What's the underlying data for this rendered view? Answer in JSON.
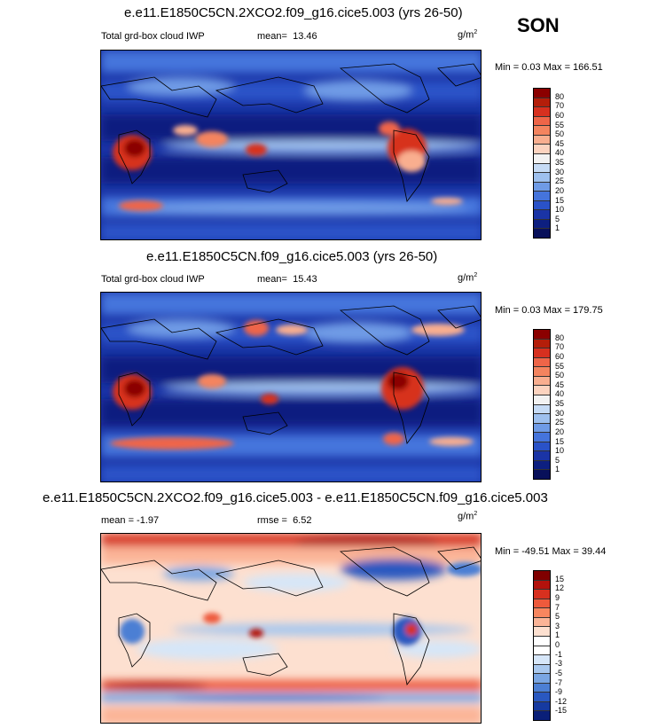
{
  "season": "SON",
  "panels": [
    {
      "title": "e.e11.E1850C5CN.2XCO2.f09_g16.cice5.003 (yrs 26-50)",
      "left_label": "Total grd-box cloud IWP",
      "stat_label": "mean=",
      "stat_value": "13.46",
      "unit": "g/m",
      "unit_exp": "2",
      "minmax": "Min =  0.03 Max = 166.51",
      "levels": [
        "80",
        "70",
        "60",
        "55",
        "50",
        "45",
        "40",
        "35",
        "30",
        "25",
        "20",
        "15",
        "10",
        "5",
        "1"
      ]
    },
    {
      "title": "e.e11.E1850C5CN.f09_g16.cice5.003 (yrs 26-50)",
      "left_label": "Total grd-box cloud IWP",
      "stat_label": "mean=",
      "stat_value": "15.43",
      "unit": "g/m",
      "unit_exp": "2",
      "minmax": "Min =  0.03 Max = 179.75",
      "levels": [
        "80",
        "70",
        "60",
        "55",
        "50",
        "45",
        "40",
        "35",
        "30",
        "25",
        "20",
        "15",
        "10",
        "5",
        "1"
      ]
    },
    {
      "title": "e.e11.E1850C5CN.2XCO2.f09_g16.cice5.003 - e.e11.E1850C5CN.f09_g16.cice5.003",
      "left_label": "mean =  -1.97",
      "stat_label": "rmse =",
      "stat_value": "6.52",
      "unit": "g/m",
      "unit_exp": "2",
      "minmax": "Min = -49.51 Max =  39.44",
      "levels": [
        "15",
        "12",
        "9",
        "7",
        "5",
        "3",
        "1",
        "0",
        "-1",
        "-3",
        "-5",
        "-7",
        "-9",
        "-12",
        "-15"
      ]
    }
  ],
  "colors": {
    "abs_scale": [
      "#8b0000",
      "#b41e0a",
      "#d7301f",
      "#ef6548",
      "#f4845f",
      "#f9ae8f",
      "#fcd3bf",
      "#f2f2f2",
      "#c6dbf5",
      "#9ec0ee",
      "#6f9be6",
      "#4574dc",
      "#2a52c8",
      "#1a34a6",
      "#0d1f80",
      "#08105a"
    ],
    "diff_scale": [
      "#7f0000",
      "#b3120c",
      "#d7301f",
      "#ee5a3c",
      "#f7865f",
      "#fbb497",
      "#fde0d0",
      "#ffffff",
      "#ffffff",
      "#d6e6f8",
      "#a9c8ee",
      "#7aa6e3",
      "#4c7fd4",
      "#2a58c0",
      "#163aa0",
      "#0a1f78"
    ]
  }
}
